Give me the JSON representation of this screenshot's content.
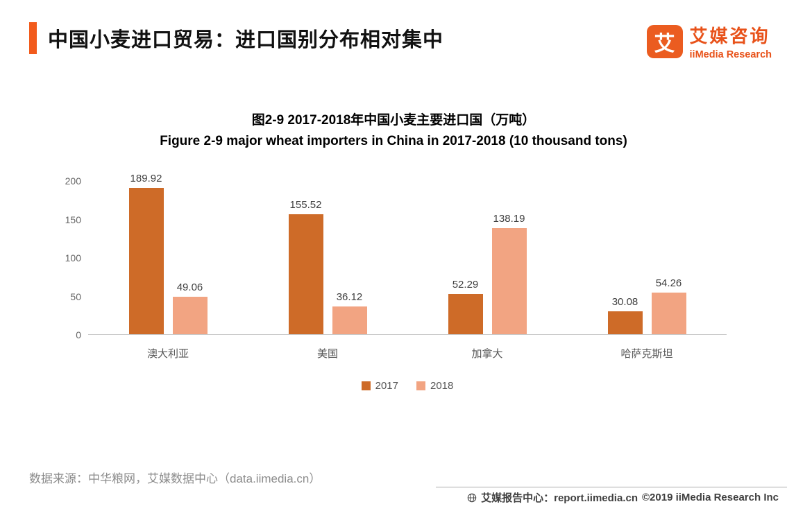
{
  "header": {
    "title": "中国小麦进口贸易：进口国别分布相对集中",
    "logo": {
      "mark": "艾",
      "name_cn": "艾媒咨询",
      "name_en": "iiMedia Research"
    }
  },
  "chart_data": {
    "type": "bar",
    "title_cn": "图2-9 2017-2018年中国小麦主要进口国（万吨）",
    "title_en": "Figure 2-9 major wheat importers in China in 2017-2018 (10 thousand tons)",
    "categories": [
      "澳大利亚",
      "美国",
      "加拿大",
      "哈萨克斯坦"
    ],
    "series": [
      {
        "name": "2017",
        "color": "#ce6b28",
        "values": [
          189.92,
          155.52,
          52.29,
          30.08
        ]
      },
      {
        "name": "2018",
        "color": "#f2a482",
        "values": [
          49.06,
          36.12,
          138.19,
          54.26
        ]
      }
    ],
    "y_ticks": [
      0,
      50,
      100,
      150,
      200
    ],
    "ylim": [
      0,
      200
    ],
    "grid": false,
    "legend_position": "bottom",
    "xlabel": "",
    "ylabel": ""
  },
  "footer": {
    "source": "数据来源：中华粮网，艾媒数据中心（data.iimedia.cn）",
    "report_center": "艾媒报告中心：report.iimedia.cn",
    "copyright": "©2019  iiMedia Research Inc"
  },
  "colors": {
    "accent": "#f25b1c",
    "bar_2017": "#ce6b28",
    "bar_2018": "#f2a482"
  }
}
